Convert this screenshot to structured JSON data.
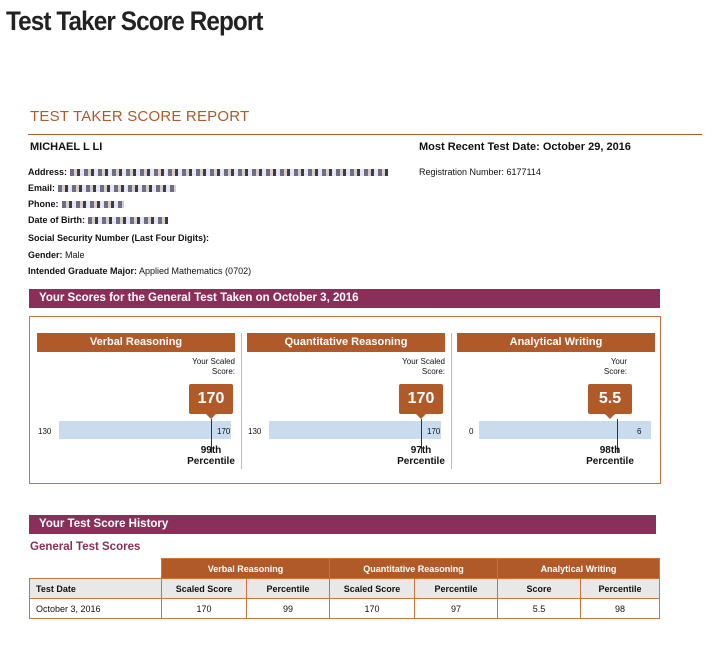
{
  "page_heading": "Test Taker Score Report",
  "report_title": "TEST TAKER SCORE REPORT",
  "candidate": {
    "name": "MICHAEL L LI",
    "most_recent": "Most Recent Test Date: October 29, 2016",
    "registration": "Registration Number: 6177114"
  },
  "info": {
    "address_label": "Address:",
    "email_label": "Email:",
    "phone_label": "Phone:",
    "dob_label": "Date of Birth:",
    "ssn_label": "Social Security Number (Last Four Digits):",
    "gender_label": "Gender:",
    "gender_value": " Male",
    "major_label": "Intended Graduate Major:",
    "major_value": " Applied Mathematics (0702)"
  },
  "scores_band": "Your Scores for the General Test Taken on October 3, 2016",
  "sections": [
    {
      "title": "Verbal Reasoning",
      "label_line1": "Your Scaled",
      "label_line2": "Score:",
      "score": "170",
      "min": "130",
      "max": "170",
      "score_frac": 1.0,
      "pct_line1": "99th",
      "pct_line2": "Percentile"
    },
    {
      "title": "Quantitative Reasoning",
      "label_line1": "Your Scaled",
      "label_line2": "Score:",
      "score": "170",
      "min": "130",
      "max": "170",
      "score_frac": 1.0,
      "pct_line1": "97th",
      "pct_line2": "Percentile"
    },
    {
      "title": "Analytical Writing",
      "label_line1": "Your",
      "label_line2": "Score:",
      "score": "5.5",
      "min": "0",
      "max": "6",
      "score_frac": 0.9167,
      "pct_line1": "98th",
      "pct_line2": "Percentile"
    }
  ],
  "history_band": "Your Test Score History",
  "history_sub": "General Test Scores",
  "history": {
    "groups": [
      "Verbal Reasoning",
      "Quantitative Reasoning",
      "Analytical Writing"
    ],
    "date_header": "Test Date",
    "sub_headers": [
      "Scaled Score",
      "Percentile",
      "Scaled Score",
      "Percentile",
      "Score",
      "Percentile"
    ],
    "rows": [
      {
        "date": "October 3, 2016",
        "values": [
          "170",
          "99",
          "170",
          "97",
          "5.5",
          "98"
        ]
      }
    ]
  }
}
